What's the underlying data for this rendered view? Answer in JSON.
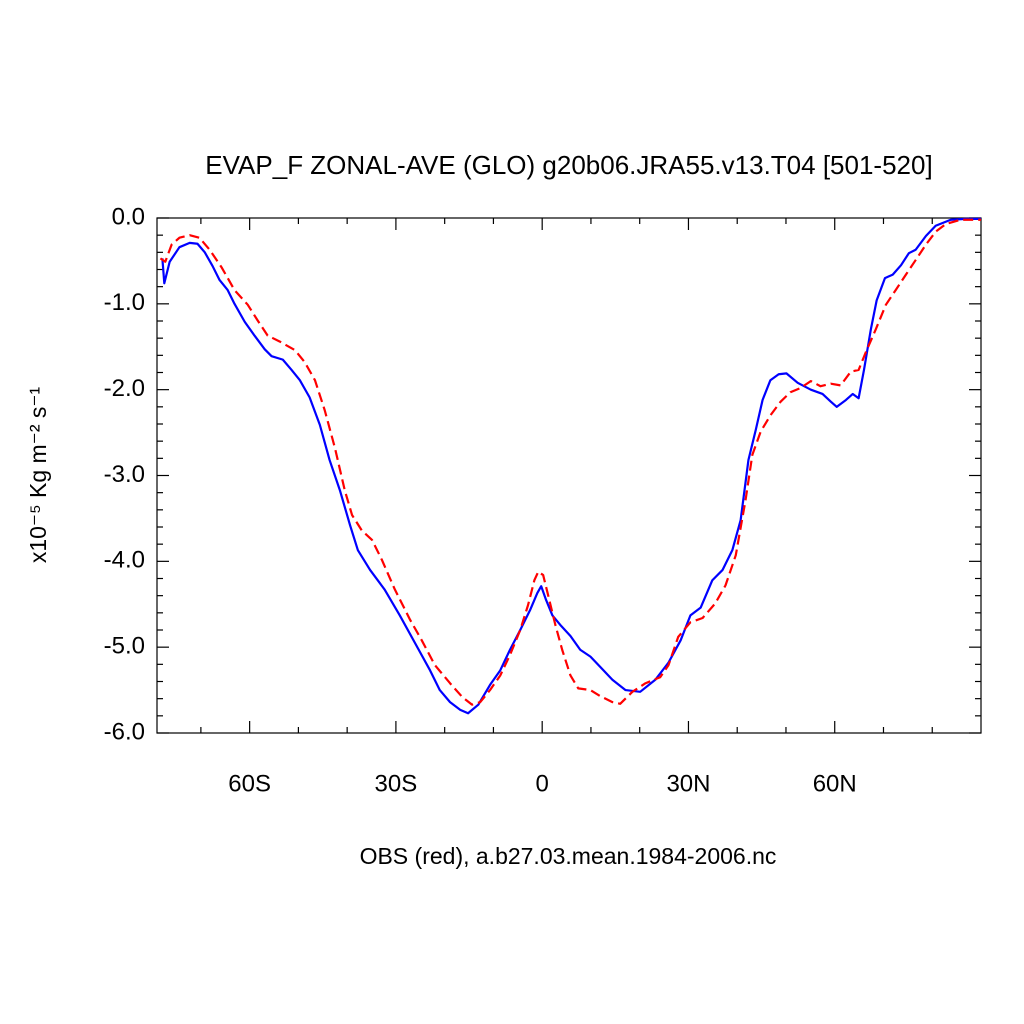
{
  "chart_data": {
    "type": "line",
    "title": "EVAP_F ZONAL-AVE (GLO) g20b06.JRA55.v13.T04 [501-520]",
    "xlabel": "OBS (red), a.b27.03.mean.1984-2006.nc",
    "ylabel": "x10⁻⁵ Kg m⁻² s⁻¹",
    "xlim": [
      -79,
      90
    ],
    "ylim": [
      -6,
      0
    ],
    "xticks": [
      {
        "value": -60,
        "label": "60S"
      },
      {
        "value": -30,
        "label": "30S"
      },
      0,
      {
        "value": 30,
        "label": "30N"
      },
      {
        "value": 60,
        "label": "60N"
      }
    ],
    "xminor_ticks": [
      -70,
      -50,
      -40,
      -20,
      -10,
      10,
      20,
      40,
      50,
      70,
      80
    ],
    "yticks": [
      {
        "value": 0,
        "label": "0.0"
      },
      {
        "value": -1,
        "label": "-1.0"
      },
      {
        "value": -2,
        "label": "-2.0"
      },
      {
        "value": -3,
        "label": "-3.0"
      },
      {
        "value": -4,
        "label": "-4.0"
      },
      {
        "value": -5,
        "label": "-5.0"
      },
      {
        "value": -6,
        "label": "-6.0"
      }
    ],
    "yminor_ticks": [
      -0.2,
      -0.4,
      -0.6,
      -0.8,
      -1.2,
      -1.4,
      -1.6,
      -1.8,
      -2.2,
      -2.4,
      -2.6,
      -2.8,
      -3.2,
      -3.4,
      -3.6,
      -3.8,
      -4.2,
      -4.4,
      -4.6,
      -4.8,
      -5.2,
      -5.4,
      -5.6,
      -5.8
    ],
    "grid": false,
    "series": [
      {
        "color": "#0000ff",
        "dash": false,
        "x": [
          -77.9,
          -77.5,
          -76.4,
          -74.4,
          -72.3,
          -70.7,
          -69.2,
          -67.6,
          -66.2,
          -64.5,
          -63.1,
          -61,
          -59,
          -56.9,
          -55.5,
          -53.2,
          -51.4,
          -49.7,
          -47.7,
          -45.6,
          -43.6,
          -41.5,
          -39.4,
          -37.8,
          -35.3,
          -32.3,
          -29.2,
          -26.1,
          -23,
          -21,
          -18.9,
          -16.8,
          -15.2,
          -13.1,
          -10.7,
          -8.6,
          -6.6,
          -4.5,
          -2.5,
          -1,
          -0.2,
          0.8,
          2.1,
          3.7,
          5.8,
          7.8,
          9.9,
          11.9,
          14.4,
          17.1,
          20.1,
          23.2,
          25.9,
          28.4,
          30.4,
          32.5,
          34.9,
          37,
          39,
          40.7,
          42.3,
          43.8,
          45.2,
          46.8,
          48.5,
          50.1,
          52.4,
          55.1,
          57.5,
          59.2,
          60.4,
          62.3,
          63.7,
          64.9,
          66,
          67.4,
          68.6,
          70.3,
          71.9,
          73.6,
          75.2,
          76.6,
          78.7,
          80.7,
          83.8,
          86.9,
          90
        ],
        "values": [
          -0.47,
          -0.76,
          -0.51,
          -0.34,
          -0.29,
          -0.3,
          -0.4,
          -0.56,
          -0.72,
          -0.84,
          -1,
          -1.21,
          -1.37,
          -1.53,
          -1.61,
          -1.65,
          -1.77,
          -1.89,
          -2.09,
          -2.41,
          -2.82,
          -3.17,
          -3.58,
          -3.87,
          -4.1,
          -4.33,
          -4.63,
          -4.95,
          -5.27,
          -5.5,
          -5.64,
          -5.73,
          -5.77,
          -5.67,
          -5.44,
          -5.27,
          -5.03,
          -4.8,
          -4.57,
          -4.37,
          -4.29,
          -4.45,
          -4.63,
          -4.74,
          -4.87,
          -5.03,
          -5.11,
          -5.23,
          -5.38,
          -5.5,
          -5.52,
          -5.38,
          -5.18,
          -4.92,
          -4.63,
          -4.54,
          -4.22,
          -4.1,
          -3.87,
          -3.52,
          -2.82,
          -2.47,
          -2.12,
          -1.89,
          -1.82,
          -1.81,
          -1.92,
          -2,
          -2.05,
          -2.14,
          -2.2,
          -2.12,
          -2.05,
          -2.1,
          -1.77,
          -1.3,
          -0.96,
          -0.7,
          -0.66,
          -0.55,
          -0.41,
          -0.37,
          -0.21,
          -0.09,
          -0.02,
          -0.01,
          -0.01
        ]
      },
      {
        "color": "#ff0000",
        "dash": true,
        "x": [
          -78.3,
          -77.3,
          -76,
          -74.4,
          -72.3,
          -70.3,
          -68.2,
          -65.7,
          -63.1,
          -60.4,
          -58.4,
          -56.3,
          -53.8,
          -50.7,
          -48.7,
          -46.6,
          -44.6,
          -42.5,
          -40.5,
          -39,
          -37,
          -34.9,
          -32.9,
          -30.2,
          -27.1,
          -24.7,
          -22,
          -18.9,
          -16.4,
          -14.4,
          -12.7,
          -10.7,
          -8.6,
          -6.6,
          -4.5,
          -2.9,
          -1.6,
          -0.8,
          0.2,
          1.2,
          2.7,
          4.1,
          5.8,
          7.4,
          9.9,
          11.9,
          14.4,
          16,
          18.5,
          21.2,
          24.2,
          25.9,
          27.9,
          30.4,
          32.9,
          35.5,
          37.6,
          39.7,
          41.7,
          43.1,
          44.8,
          46.8,
          48.9,
          50.9,
          53,
          55.1,
          57.1,
          59.2,
          61.2,
          63.3,
          64.9,
          66.4,
          68.4,
          70.5,
          72.5,
          74.6,
          76.6,
          78.7,
          80.7,
          82.8,
          85.9,
          90
        ],
        "values": [
          -0.47,
          -0.51,
          -0.31,
          -0.23,
          -0.2,
          -0.23,
          -0.37,
          -0.58,
          -0.84,
          -1.01,
          -1.19,
          -1.37,
          -1.44,
          -1.54,
          -1.68,
          -1.89,
          -2.24,
          -2.68,
          -3.17,
          -3.46,
          -3.64,
          -3.75,
          -3.98,
          -4.33,
          -4.68,
          -4.92,
          -5.21,
          -5.42,
          -5.58,
          -5.67,
          -5.64,
          -5.5,
          -5.33,
          -5.09,
          -4.8,
          -4.51,
          -4.22,
          -4.12,
          -4.16,
          -4.39,
          -4.74,
          -5.03,
          -5.33,
          -5.48,
          -5.5,
          -5.57,
          -5.64,
          -5.66,
          -5.52,
          -5.42,
          -5.35,
          -5.21,
          -4.88,
          -4.71,
          -4.66,
          -4.49,
          -4.28,
          -3.93,
          -3.29,
          -2.76,
          -2.49,
          -2.3,
          -2.14,
          -2.03,
          -1.98,
          -1.9,
          -1.96,
          -1.93,
          -1.95,
          -1.79,
          -1.77,
          -1.56,
          -1.3,
          -1.01,
          -0.84,
          -0.66,
          -0.49,
          -0.31,
          -0.16,
          -0.07,
          -0.02,
          -0.02
        ]
      }
    ]
  }
}
